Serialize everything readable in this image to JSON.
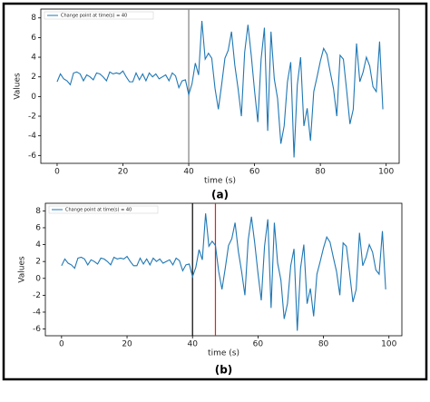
{
  "chart_data": [
    {
      "type": "line",
      "caption": "(a)",
      "x_label": "time (s)",
      "y_label": "Values",
      "x": [
        0,
        1,
        2,
        3,
        4,
        5,
        6,
        7,
        8,
        9,
        10,
        11,
        12,
        13,
        14,
        15,
        16,
        17,
        18,
        19,
        20,
        21,
        22,
        23,
        24,
        25,
        26,
        27,
        28,
        29,
        30,
        31,
        32,
        33,
        34,
        35,
        36,
        37,
        38,
        39,
        40,
        41,
        42,
        43,
        44,
        45,
        46,
        47,
        48,
        49,
        50,
        51,
        52,
        53,
        54,
        55,
        56,
        57,
        58,
        59,
        60,
        61,
        62,
        63,
        64,
        65,
        66,
        67,
        68,
        69,
        70,
        71,
        72,
        73,
        74,
        75,
        76,
        77,
        78,
        79,
        80,
        81,
        82,
        83,
        84,
        85,
        86,
        87,
        88,
        89,
        90,
        91,
        92,
        93,
        94,
        95,
        96,
        97,
        98,
        99
      ],
      "series": [
        {
          "name": "Change point at time(s) = 40",
          "color": "#1f77b4",
          "values": [
            1.5,
            2.3,
            1.8,
            1.6,
            1.2,
            2.4,
            2.5,
            2.3,
            1.6,
            2.2,
            2.0,
            1.7,
            2.4,
            2.3,
            2.0,
            1.6,
            2.5,
            2.3,
            2.4,
            2.3,
            2.6,
            2.0,
            1.5,
            1.5,
            2.4,
            1.7,
            2.3,
            1.6,
            2.4,
            2.0,
            2.3,
            1.8,
            2.0,
            2.2,
            1.6,
            2.4,
            2.1,
            0.9,
            1.6,
            1.7,
            0.2,
            1.3,
            3.4,
            2.2,
            7.7,
            3.8,
            4.4,
            3.9,
            0.8,
            -1.3,
            1.2,
            3.9,
            4.7,
            6.6,
            3.2,
            0.8,
            -2.0,
            4.5,
            7.3,
            4.2,
            0.6,
            -2.6,
            3.8,
            7.0,
            -3.5,
            6.6,
            1.8,
            -0.2,
            -4.8,
            -3.0,
            1.5,
            3.5,
            -6.2,
            1.2,
            4.0,
            -3.0,
            -1.2,
            -4.5,
            0.5,
            2.0,
            3.6,
            4.9,
            4.3,
            2.5,
            0.8,
            -2.0,
            4.2,
            3.8,
            0.6,
            -2.8,
            -1.3,
            5.4,
            1.5,
            2.5,
            4.0,
            3.1,
            1.0,
            0.5,
            5.6,
            -1.3
          ]
        }
      ],
      "change_points": [
        {
          "x": 40,
          "color": "#7f7f7f"
        }
      ],
      "xlim": [
        -4.95,
        103.95
      ],
      "ylim": [
        -6.8,
        8.9
      ],
      "xticks": [
        0,
        20,
        40,
        60,
        80,
        100
      ],
      "yticks": [
        -6,
        -4,
        -2,
        0,
        2,
        4,
        6,
        8
      ]
    },
    {
      "type": "line",
      "caption": "(b)",
      "x_label": "time (s)",
      "y_label": "Values",
      "x": [
        0,
        1,
        2,
        3,
        4,
        5,
        6,
        7,
        8,
        9,
        10,
        11,
        12,
        13,
        14,
        15,
        16,
        17,
        18,
        19,
        20,
        21,
        22,
        23,
        24,
        25,
        26,
        27,
        28,
        29,
        30,
        31,
        32,
        33,
        34,
        35,
        36,
        37,
        38,
        39,
        40,
        41,
        42,
        43,
        44,
        45,
        46,
        47,
        48,
        49,
        50,
        51,
        52,
        53,
        54,
        55,
        56,
        57,
        58,
        59,
        60,
        61,
        62,
        63,
        64,
        65,
        66,
        67,
        68,
        69,
        70,
        71,
        72,
        73,
        74,
        75,
        76,
        77,
        78,
        79,
        80,
        81,
        82,
        83,
        84,
        85,
        86,
        87,
        88,
        89,
        90,
        91,
        92,
        93,
        94,
        95,
        96,
        97,
        98,
        99
      ],
      "series": [
        {
          "name": "Change point at time(s) = 40",
          "color": "#1f77b4",
          "values": [
            1.5,
            2.3,
            1.8,
            1.6,
            1.2,
            2.4,
            2.5,
            2.3,
            1.6,
            2.2,
            2.0,
            1.7,
            2.4,
            2.3,
            2.0,
            1.6,
            2.5,
            2.3,
            2.4,
            2.3,
            2.6,
            2.0,
            1.5,
            1.5,
            2.4,
            1.7,
            2.3,
            1.6,
            2.4,
            2.0,
            2.3,
            1.8,
            2.0,
            2.2,
            1.6,
            2.4,
            2.1,
            0.9,
            1.6,
            1.7,
            0.2,
            1.3,
            3.4,
            2.2,
            7.7,
            3.8,
            4.4,
            3.9,
            0.8,
            -1.3,
            1.2,
            3.9,
            4.7,
            6.6,
            3.2,
            0.8,
            -2.0,
            4.5,
            7.3,
            4.2,
            0.6,
            -2.6,
            3.8,
            7.0,
            -3.5,
            6.6,
            1.8,
            -0.2,
            -4.8,
            -3.0,
            1.5,
            3.5,
            -6.2,
            1.2,
            4.0,
            -3.0,
            -1.2,
            -4.5,
            0.5,
            2.0,
            3.6,
            4.9,
            4.3,
            2.5,
            0.8,
            -2.0,
            4.2,
            3.8,
            0.6,
            -2.8,
            -1.3,
            5.4,
            1.5,
            2.5,
            4.0,
            3.1,
            1.0,
            0.5,
            5.6,
            -1.3
          ]
        }
      ],
      "change_points": [
        {
          "x": 40,
          "color": "#000000"
        },
        {
          "x": 47,
          "color": "#d62728"
        }
      ],
      "xlim": [
        -4.95,
        103.95
      ],
      "ylim": [
        -6.8,
        8.9
      ],
      "xticks": [
        0,
        20,
        40,
        60,
        80,
        100
      ],
      "yticks": [
        -6,
        -4,
        -2,
        0,
        2,
        4,
        6,
        8
      ]
    }
  ]
}
